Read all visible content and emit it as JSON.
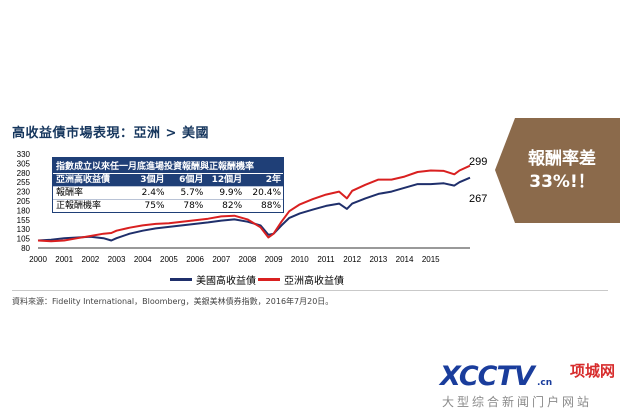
{
  "title": "高收益債市場表現：亞洲 > 美國",
  "callout": {
    "line1": "報酬率差",
    "line2": "33%!！"
  },
  "end_labels": {
    "asia": "299",
    "us": "267"
  },
  "table": {
    "header": "指數成立以來任一月底進場投資報酬與正報酬機率",
    "columns": [
      "亞洲高收益債",
      "3個月",
      "6個月",
      "12個月",
      "2年"
    ],
    "rows": [
      {
        "label": "報酬率",
        "values": [
          "2.4%",
          "5.7%",
          "9.9%",
          "20.4%"
        ]
      },
      {
        "label": "正報酬機率",
        "values": [
          "75%",
          "78%",
          "82%",
          "88%"
        ]
      }
    ]
  },
  "source": "資料來源：Fidelity International，Bloomberg，美銀美林債券指數，2016年7月20日。",
  "logo": {
    "main": "XCCTV",
    "domain": ".cn",
    "side": "项城网",
    "sub": "大型综合新闻门户网站"
  },
  "colors": {
    "us": "#1f2f6b",
    "asia": "#d92020",
    "callout": "#8b6a4b",
    "table_header": "#1f3f77"
  },
  "chart_data": {
    "type": "line",
    "x_label": "",
    "y_label": "",
    "ylim": [
      80,
      330
    ],
    "y_ticks": [
      80,
      105,
      130,
      155,
      180,
      205,
      230,
      255,
      280,
      305,
      330
    ],
    "x_ticks": [
      "2000",
      "2001",
      "2002",
      "2003",
      "2004",
      "2005",
      "2006",
      "2007",
      "2008",
      "2009",
      "2010",
      "2011",
      "2012",
      "2013",
      "2014",
      "2015"
    ],
    "grid": false,
    "legend": "bottom",
    "series": [
      {
        "name": "美國高收益債",
        "color": "#1f2f6b",
        "x": [
          2000.0,
          2000.5,
          2001.0,
          2001.5,
          2002.0,
          2002.5,
          2002.8,
          2003.0,
          2003.5,
          2004.0,
          2004.5,
          2005.0,
          2005.5,
          2006.0,
          2006.5,
          2007.0,
          2007.5,
          2008.0,
          2008.5,
          2008.8,
          2009.0,
          2009.3,
          2009.6,
          2010.0,
          2010.5,
          2011.0,
          2011.5,
          2011.8,
          2012.0,
          2012.5,
          2013.0,
          2013.5,
          2014.0,
          2014.5,
          2015.0,
          2015.5,
          2015.9,
          2016.1,
          2016.5
        ],
        "y": [
          100,
          102,
          106,
          108,
          110,
          106,
          100,
          106,
          118,
          126,
          132,
          136,
          140,
          144,
          148,
          153,
          156,
          150,
          140,
          115,
          118,
          140,
          160,
          172,
          182,
          192,
          198,
          184,
          198,
          212,
          224,
          230,
          240,
          250,
          250,
          252,
          246,
          255,
          267
        ]
      },
      {
        "name": "亞洲高收益債",
        "color": "#d92020",
        "x": [
          2000.0,
          2000.5,
          2001.0,
          2001.5,
          2002.0,
          2002.5,
          2002.8,
          2003.0,
          2003.5,
          2004.0,
          2004.5,
          2005.0,
          2005.5,
          2006.0,
          2006.5,
          2007.0,
          2007.5,
          2008.0,
          2008.5,
          2008.8,
          2009.0,
          2009.3,
          2009.6,
          2010.0,
          2010.5,
          2011.0,
          2011.5,
          2011.8,
          2012.0,
          2012.5,
          2013.0,
          2013.5,
          2014.0,
          2014.5,
          2015.0,
          2015.5,
          2015.9,
          2016.1,
          2016.5
        ],
        "y": [
          100,
          98,
          100,
          106,
          112,
          118,
          120,
          126,
          134,
          140,
          144,
          146,
          150,
          154,
          158,
          164,
          166,
          156,
          135,
          108,
          118,
          150,
          178,
          196,
          210,
          222,
          230,
          212,
          232,
          248,
          262,
          262,
          270,
          282,
          286,
          285,
          276,
          286,
          299
        ]
      }
    ]
  }
}
